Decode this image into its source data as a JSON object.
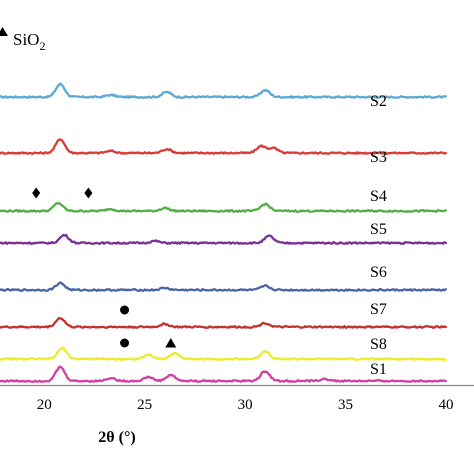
{
  "chart_data": {
    "type": "line",
    "xlabel": "2θ (°)",
    "xlim": [
      17.8,
      40
    ],
    "x_ticks": [
      20,
      25,
      30,
      35,
      40
    ],
    "legend": {
      "symbol": "triangle",
      "label_main": "SiO",
      "label_sub": "2"
    },
    "series": [
      {
        "name": "S2",
        "color": "#5ba8d6",
        "peaks": [
          [
            20.8,
            13
          ],
          [
            23.3,
            2
          ],
          [
            26.1,
            5
          ],
          [
            31.0,
            7
          ]
        ]
      },
      {
        "name": "S3",
        "color": "#d93a35",
        "peaks": [
          [
            20.8,
            14
          ],
          [
            23.3,
            2
          ],
          [
            26.1,
            4
          ],
          [
            30.8,
            7
          ],
          [
            31.4,
            5
          ]
        ]
      },
      {
        "name": "S4",
        "color": "#52ad45",
        "peaks": [
          [
            20.7,
            8
          ],
          [
            23.3,
            2
          ],
          [
            26.0,
            3
          ],
          [
            31.0,
            7
          ]
        ]
      },
      {
        "name": "S5",
        "color": "#7a2f92",
        "peaks": [
          [
            21.0,
            8
          ],
          [
            25.5,
            2
          ],
          [
            31.2,
            7
          ]
        ]
      },
      {
        "name": "S6",
        "color": "#4b63a6",
        "peaks": [
          [
            20.8,
            7
          ],
          [
            26.0,
            2
          ],
          [
            31.0,
            4
          ]
        ]
      },
      {
        "name": "S7",
        "color": "#c0332e",
        "peaks": [
          [
            20.8,
            9
          ],
          [
            26.0,
            3
          ],
          [
            31.0,
            4
          ]
        ]
      },
      {
        "name": "S8",
        "color": "#ecec2a",
        "peaks": [
          [
            20.9,
            11
          ],
          [
            25.2,
            4
          ],
          [
            26.5,
            6
          ],
          [
            31.0,
            8
          ]
        ]
      },
      {
        "name": "S1",
        "color": "#d13fa2",
        "peaks": [
          [
            20.8,
            14
          ],
          [
            23.3,
            3
          ],
          [
            25.2,
            4
          ],
          [
            26.3,
            6
          ],
          [
            31.0,
            10
          ],
          [
            34.0,
            2
          ]
        ]
      }
    ],
    "markers": [
      {
        "shape": "diamond",
        "x": 19.6,
        "series": "S4"
      },
      {
        "shape": "diamond",
        "x": 22.2,
        "series": "S4"
      },
      {
        "shape": "circle",
        "x": 24.0,
        "series": "S7"
      },
      {
        "shape": "circle",
        "x": 24.0,
        "series": "S8"
      },
      {
        "shape": "triangle",
        "x": 26.3,
        "series": "S8"
      }
    ]
  }
}
